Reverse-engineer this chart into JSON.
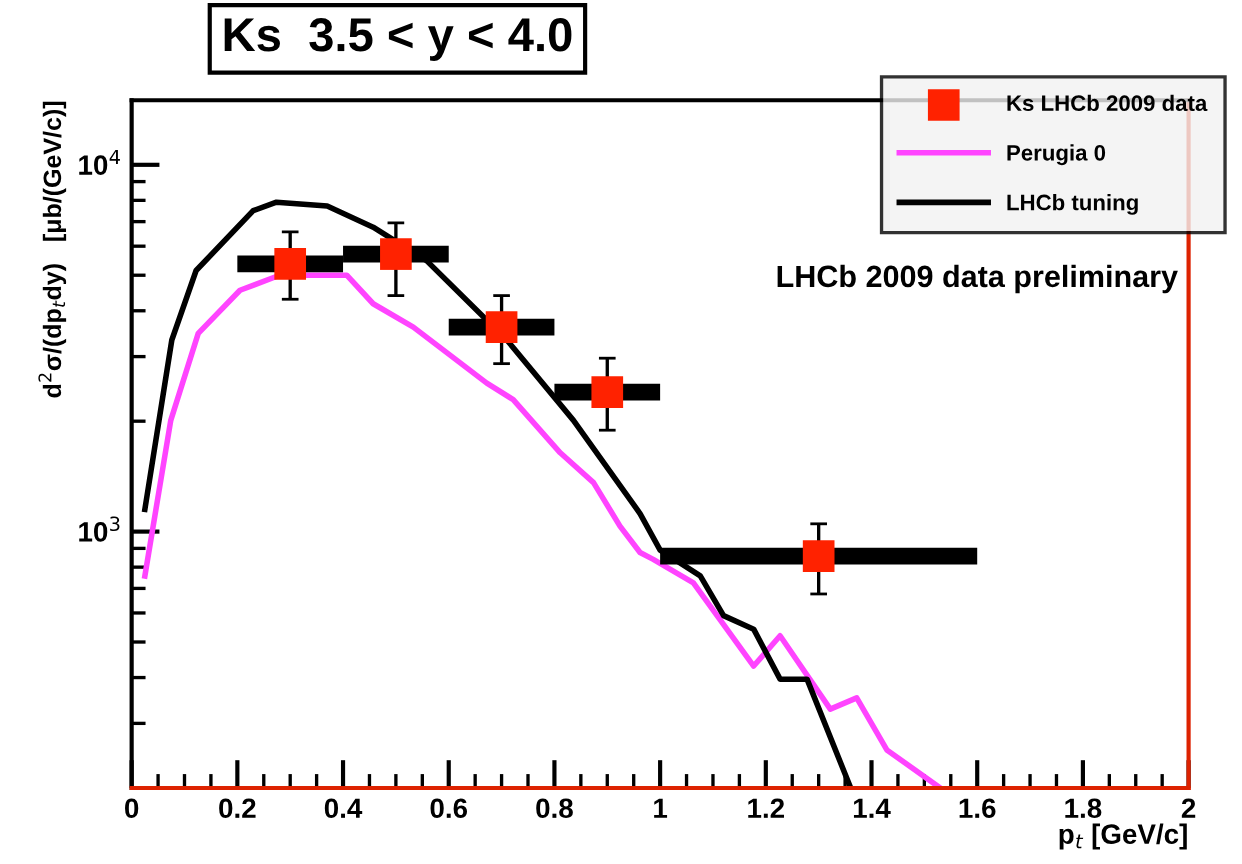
{
  "chart_data": {
    "type": "line",
    "title": "Ks  3.5 < y < 4.0",
    "xlabel": "p$_{t}$ [GeV/c]",
    "ylabel": "d$^{2}$σ/(dp$_{t}$dy)   [μb/(GeV/c)]",
    "annotations": [
      "LHCb 2009 data preliminary"
    ],
    "log": "y",
    "grid": false,
    "legend": "top right",
    "xlim": [
      0,
      2
    ],
    "xticks": [
      0,
      0.2,
      0.4,
      0.6,
      0.8,
      1,
      1.2,
      1.4,
      1.6,
      1.8,
      2
    ],
    "ylim": [
      200,
      15000
    ],
    "yticks": [
      {
        "value": 1000,
        "label": "10$^{3}$"
      },
      {
        "value": 10000,
        "label": "10$^{4}$"
      }
    ],
    "series": [
      {
        "name": "Ks LHCb 2009 data",
        "type": "scatter",
        "color": "#ff2200",
        "marker": "square",
        "x": [
          0.3,
          0.5,
          0.7,
          0.9,
          1.3
        ],
        "values": [
          5370,
          5710,
          3610,
          2400,
          857
        ],
        "errors": [
          [
            4300,
            6560
          ],
          [
            4400,
            6950
          ],
          [
            2870,
            4400
          ],
          [
            1890,
            2970
          ],
          [
            676,
            1050
          ]
        ],
        "xerrors": [
          [
            0.2,
            0.4
          ],
          [
            0.4,
            0.6
          ],
          [
            0.6,
            0.8
          ],
          [
            0.8,
            1.0
          ],
          [
            1.0,
            1.6
          ]
        ]
      },
      {
        "name": "Perugia 0",
        "type": "line",
        "color": "#ff44ff",
        "line_style": "solid",
        "x": [
          0.025,
          0.074,
          0.126,
          0.205,
          0.28,
          0.407,
          0.457,
          0.533,
          0.672,
          0.722,
          0.811,
          0.874,
          0.924,
          0.962,
          0.987,
          1.063,
          1.177,
          1.227,
          1.322,
          1.372,
          1.429,
          1.53
        ],
        "values": [
          757,
          2010,
          3470,
          4550,
          5000,
          5000,
          4180,
          3610,
          2540,
          2290,
          1640,
          1360,
          1035,
          877,
          840,
          725,
          430,
          520,
          328,
          352,
          254,
          200
        ]
      },
      {
        "name": "LHCb tuning",
        "color": "#000000",
        "line_style": "solid",
        "x": [
          0.025,
          0.076,
          0.122,
          0.23,
          0.274,
          0.37,
          0.457,
          0.558,
          0.71,
          0.836,
          0.962,
          1.0,
          1.076,
          1.12,
          1.177,
          1.227,
          1.278,
          1.36
        ],
        "values": [
          1150,
          3330,
          5150,
          7500,
          7910,
          7720,
          6760,
          5480,
          3330,
          2010,
          1120,
          890,
          757,
          590,
          542,
          396,
          396,
          201
        ]
      }
    ]
  }
}
